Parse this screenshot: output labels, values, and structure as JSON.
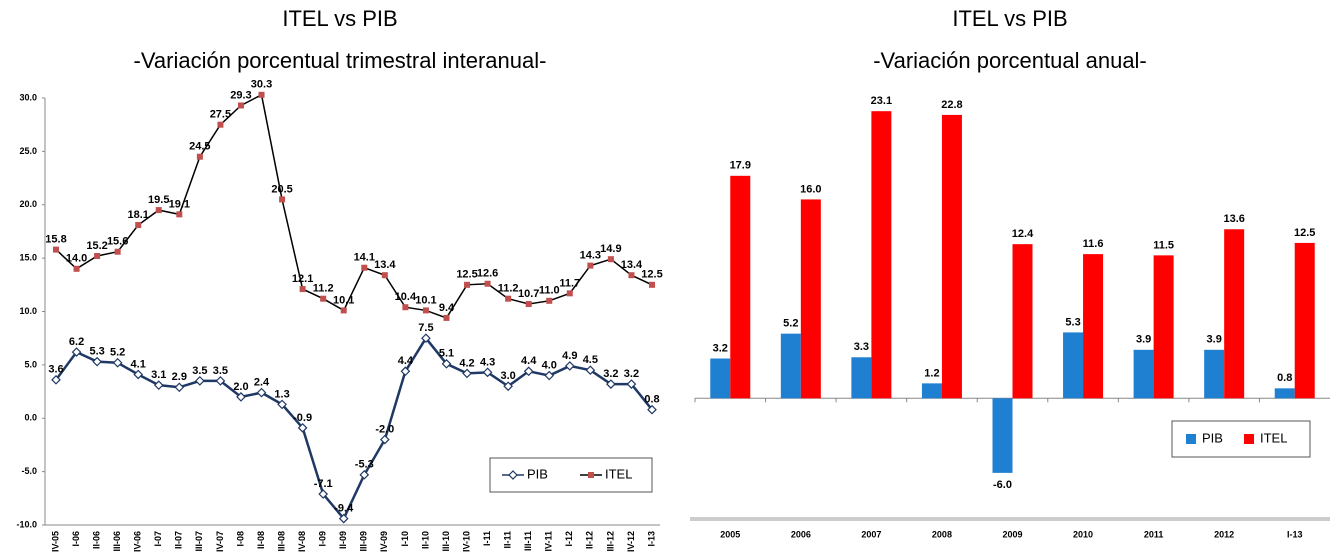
{
  "chart_data": [
    {
      "type": "line",
      "title": "ITEL vs PIB",
      "subtitle": "-Variación porcentual trimestral interanual-",
      "categories": [
        "IV-05",
        "I-06",
        "II-06",
        "III-06",
        "IV-06",
        "I-07",
        "II-07",
        "III-07",
        "IV-07",
        "I-08",
        "II-08",
        "III-08",
        "IV-08",
        "I-09",
        "II-09",
        "III-09",
        "IV-09",
        "I-10",
        "II-10",
        "III-10",
        "IV-10",
        "I-11",
        "II-11",
        "III-11",
        "IV-11",
        "I-12",
        "II-12",
        "III-12",
        "IV-12",
        "I-13"
      ],
      "series": [
        {
          "name": "PIB",
          "color": "#1f3864",
          "line_color": "#1f3864",
          "marker": "diamond",
          "values": [
            3.6,
            6.2,
            5.3,
            5.2,
            4.1,
            3.1,
            2.9,
            3.5,
            3.5,
            2.0,
            2.4,
            1.3,
            -0.9,
            -7.1,
            -9.4,
            -5.3,
            -2.0,
            4.4,
            7.5,
            5.1,
            4.2,
            4.3,
            3.0,
            4.4,
            4.0,
            4.9,
            4.5,
            3.2,
            3.2,
            0.8
          ],
          "value_labels": [
            "3.6",
            "6.2",
            "5.3",
            "5.2",
            "4.1",
            "3.1",
            "2.9",
            "3.5",
            "3.5",
            "2.0",
            "2.4",
            "1.3",
            "-0.9",
            "-7.1",
            "-9.4",
            "-5.3",
            "-2.0",
            "4.4",
            "7.5",
            "5.1",
            "4.2",
            "4.3",
            "3.0",
            "4.4",
            "4.0",
            "4.9",
            "4.5",
            "3.2",
            "3.2",
            "0.8"
          ]
        },
        {
          "name": "ITEL",
          "color": "#c0504d",
          "line_color": "#000000",
          "marker": "square",
          "values": [
            15.8,
            14.0,
            15.2,
            15.6,
            18.1,
            19.5,
            19.1,
            24.5,
            27.5,
            29.3,
            30.3,
            20.5,
            12.1,
            11.2,
            10.1,
            14.1,
            13.4,
            10.4,
            10.1,
            9.4,
            12.5,
            12.6,
            11.2,
            10.7,
            11.0,
            11.7,
            14.3,
            14.9,
            13.4,
            12.5
          ],
          "value_labels": [
            "15.8",
            "14.0",
            "15.2",
            "15.6",
            "18.1",
            "19.5",
            "19.1",
            "24.5",
            "27.5",
            "29.3",
            "30.3",
            "20.5",
            "12.1",
            "11.2",
            "10.1",
            "14.1",
            "13.4",
            "10.4",
            "10.1",
            "9.4",
            "12.5",
            "12.6",
            "11.2",
            "10.7",
            "11.0",
            "11.7",
            "14.3",
            "14.9",
            "13.4",
            "12.5"
          ]
        }
      ],
      "ylim": [
        -10,
        30
      ],
      "yticks": [
        {
          "value": -10,
          "label": "-10.0"
        },
        {
          "value": -5,
          "label": "-5.0"
        },
        {
          "value": 0,
          "label": "0.0"
        },
        {
          "value": 5,
          "label": "5.0"
        },
        {
          "value": 10,
          "label": "10.0"
        },
        {
          "value": 15,
          "label": "15.0"
        },
        {
          "value": 20,
          "label": "20.0"
        },
        {
          "value": 25,
          "label": "25.0"
        },
        {
          "value": 30,
          "label": "30.0"
        }
      ],
      "legend": "lower right"
    },
    {
      "type": "bar",
      "title": "ITEL vs PIB",
      "subtitle": "-Variación porcentual anual-",
      "categories": [
        "2005",
        "2006",
        "2007",
        "2008",
        "2009",
        "2010",
        "2011",
        "2012",
        "I-13"
      ],
      "series": [
        {
          "name": "PIB",
          "color": "#1f7fd0",
          "values": [
            3.2,
            5.2,
            3.3,
            1.2,
            -6.0,
            5.3,
            3.9,
            3.9,
            0.8
          ],
          "value_labels": [
            "3.2",
            "5.2",
            "3.3",
            "1.2",
            "-6.0",
            "5.3",
            "3.9",
            "3.9",
            "0.8"
          ]
        },
        {
          "name": "ITEL",
          "color": "#ff0000",
          "values": [
            17.9,
            16.0,
            23.1,
            22.8,
            12.4,
            11.6,
            11.5,
            13.6,
            12.5
          ],
          "value_labels": [
            "17.9",
            "16.0",
            "23.1",
            "22.8",
            "12.4",
            "11.6",
            "11.5",
            "13.6",
            "12.5"
          ]
        }
      ],
      "ylim": [
        -11,
        24
      ],
      "legend": "center right"
    }
  ]
}
